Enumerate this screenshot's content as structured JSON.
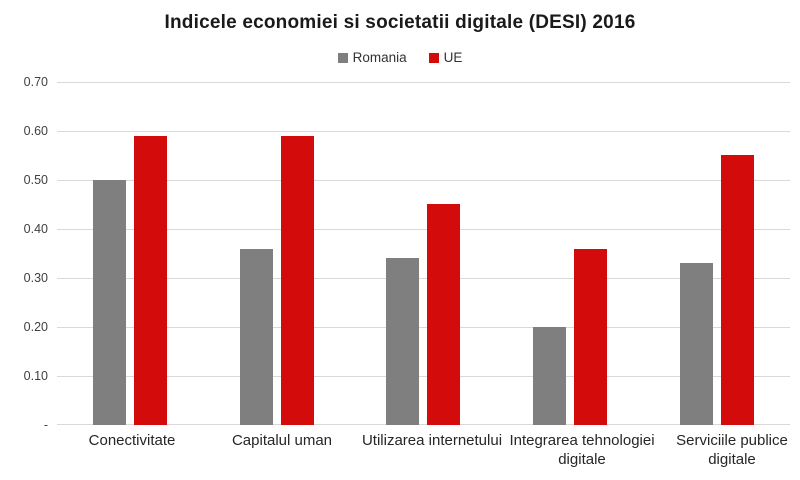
{
  "title": "Indicele economiei si societatii digitale (DESI) 2016",
  "legend": {
    "items": [
      {
        "label": "Romania",
        "color": "#7f7f7f"
      },
      {
        "label": "UE",
        "color": "#d40b0b"
      }
    ]
  },
  "y_axis": {
    "tick_labels": [
      "0.70",
      "0.60",
      "0.50",
      "0.40",
      "0.30",
      "0.20",
      "0.10",
      "-"
    ]
  },
  "chart_data": {
    "type": "bar",
    "title": "Indicele economiei si societatii digitale (DESI) 2016",
    "categories": [
      "Conectivitate",
      "Capitalul uman",
      "Utilizarea internetului",
      "Integrarea tehnologiei digitale",
      "Serviciile publice digitale"
    ],
    "series": [
      {
        "name": "Romania",
        "color": "#7f7f7f",
        "values": [
          0.5,
          0.36,
          0.34,
          0.2,
          0.33
        ]
      },
      {
        "name": "UE",
        "color": "#d40b0b",
        "values": [
          0.59,
          0.59,
          0.45,
          0.36,
          0.55
        ]
      }
    ],
    "xlabel": "",
    "ylabel": "",
    "ylim": [
      0,
      0.7
    ],
    "y_tick_step": 0.1,
    "grid": true,
    "legend_position": "top",
    "background": "#ffffff",
    "gridline_color": "#d9d9d9"
  }
}
